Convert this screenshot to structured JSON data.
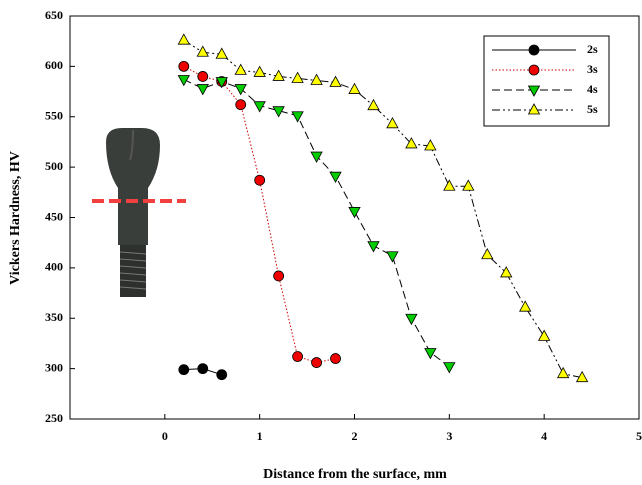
{
  "chart_data": {
    "type": "line",
    "xlabel": "Distance from the surface, mm",
    "ylabel": "Vickers Hardness, HV",
    "xlim": [
      -1,
      5
    ],
    "xticks": [
      0,
      1,
      2,
      3,
      4,
      5
    ],
    "ylim": [
      250,
      650
    ],
    "yticks": [
      250,
      300,
      350,
      400,
      450,
      500,
      550,
      600,
      650
    ],
    "legend": "upper right",
    "series": [
      {
        "name": "2s",
        "color": "#000000",
        "marker_color": "#000000",
        "marker": "circle",
        "dash": "solid",
        "x": [
          0.2,
          0.4,
          0.6
        ],
        "values": [
          299,
          300,
          294
        ]
      },
      {
        "name": "3s",
        "color": "#cc0000",
        "marker_color": "#ee0000",
        "marker": "circle",
        "dash": "dotted",
        "x": [
          0.2,
          0.4,
          0.6,
          0.8,
          1.0,
          1.2,
          1.4,
          1.6,
          1.8
        ],
        "values": [
          600,
          590,
          585,
          562,
          487,
          392,
          312,
          306,
          310
        ]
      },
      {
        "name": "4s",
        "color": "#000000",
        "marker_color": "#00cc00",
        "marker": "triangle-down",
        "dash": "dashed",
        "x": [
          0.2,
          0.4,
          0.6,
          0.8,
          1.0,
          1.2,
          1.4,
          1.6,
          1.8,
          2.0,
          2.2,
          2.4,
          2.6,
          2.8,
          3.0
        ],
        "values": [
          587,
          578,
          585,
          578,
          561,
          556,
          551,
          511,
          491,
          456,
          422,
          412,
          350,
          316,
          302
        ]
      },
      {
        "name": "5s",
        "color": "#000000",
        "marker_color": "#ffff00",
        "marker": "triangle-up",
        "dash": "dash-dot-dot",
        "x": [
          0.2,
          0.4,
          0.6,
          0.8,
          1.0,
          1.2,
          1.4,
          1.6,
          1.8,
          2.0,
          2.2,
          2.4,
          2.6,
          2.8,
          3.0,
          3.2,
          3.4,
          3.6,
          3.8,
          4.0,
          4.2,
          4.4
        ],
        "values": [
          626,
          614,
          612,
          596,
          594,
          590,
          588,
          586,
          584,
          577,
          561,
          543,
          523,
          521,
          481,
          481,
          413,
          395,
          361,
          332,
          295,
          291
        ]
      }
    ]
  }
}
